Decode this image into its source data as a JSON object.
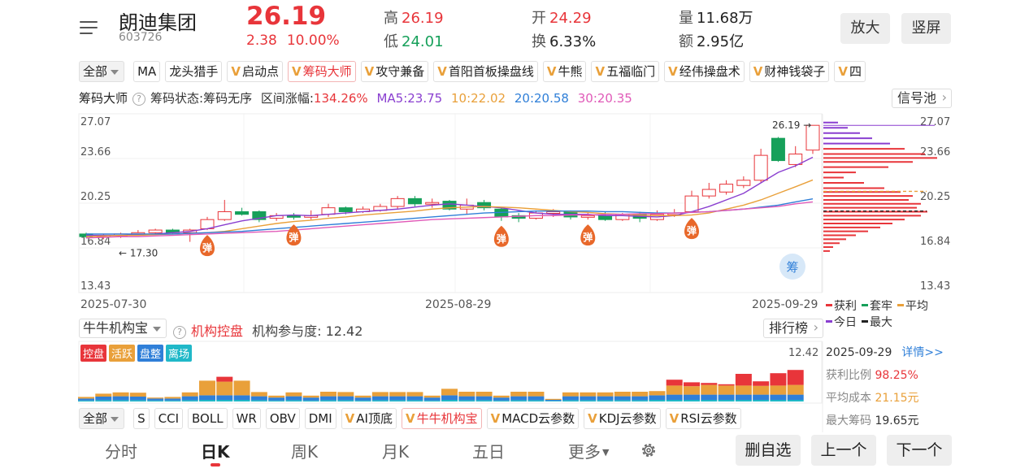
{
  "header": {
    "name": "朗迪集团",
    "code": "603726",
    "price": "26.19",
    "change": "2.38",
    "change_pct": "10.00%",
    "high_label": "高",
    "high": "26.19",
    "low_label": "低",
    "low": "24.01",
    "open_label": "开",
    "open": "24.29",
    "turnover_label": "换",
    "turnover": "6.33%",
    "volume_label": "量",
    "volume": "11.68万",
    "amount_label": "额",
    "amount": "2.95亿",
    "zoom_btn": "放大",
    "portrait_btn": "竖屏"
  },
  "indicator_bar": {
    "selector": "全部",
    "items": [
      "MA",
      "龙头猎手",
      "启动点",
      "筹码大师",
      "攻守兼备",
      "首阳首板操盘线",
      "牛熊",
      "五福临门",
      "经伟操盘术",
      "财神钱袋子",
      "四"
    ],
    "active": "筹码大师"
  },
  "chart_info": {
    "title": "筹码大师",
    "state": "筹码状态:筹码无序",
    "range_label": "区间涨幅:",
    "range_value": "134.26%",
    "ma5": "MA5:23.75",
    "ma10": "10:22.02",
    "ma20": "20:20.58",
    "ma30": "30:20.35",
    "signal_pool": "信号池"
  },
  "colors": {
    "up": "#e8353a",
    "down": "#16a05a",
    "ma5": "#8a3fd0",
    "ma10": "#e9a03a",
    "ma20": "#2f7fd8",
    "ma30": "#e05ab8"
  },
  "chart_data": {
    "type": "candlestick",
    "y_ticks": [
      "27.07",
      "23.66",
      "20.25",
      "16.84",
      "13.43"
    ],
    "ylim": [
      13.43,
      27.07
    ],
    "x_labels": [
      "2025-07-30",
      "2025-08-29",
      "2025-09-29"
    ],
    "max_label": "26.19",
    "min_label": "17.30",
    "signal_label": "弹",
    "chip_label": "筹",
    "candles": [
      {
        "o": 17.9,
        "c": 17.7,
        "h": 18.0,
        "l": 17.6
      },
      {
        "o": 17.7,
        "c": 17.8,
        "h": 17.9,
        "l": 17.5
      },
      {
        "o": 17.8,
        "c": 17.9,
        "h": 18.0,
        "l": 17.6
      },
      {
        "o": 17.9,
        "c": 18.0,
        "h": 18.2,
        "l": 17.8
      },
      {
        "o": 18.0,
        "c": 18.2,
        "h": 18.3,
        "l": 17.9
      },
      {
        "o": 18.2,
        "c": 18.0,
        "h": 18.3,
        "l": 17.9
      },
      {
        "o": 18.0,
        "c": 18.2,
        "h": 18.3,
        "l": 17.3
      },
      {
        "o": 18.3,
        "c": 19.0,
        "h": 19.2,
        "l": 18.2
      },
      {
        "o": 19.0,
        "c": 19.6,
        "h": 20.5,
        "l": 18.9
      },
      {
        "o": 19.6,
        "c": 19.4,
        "h": 19.9,
        "l": 19.3
      },
      {
        "o": 19.6,
        "c": 19.0,
        "h": 19.7,
        "l": 18.8
      },
      {
        "o": 19.1,
        "c": 19.3,
        "h": 19.5,
        "l": 18.9
      },
      {
        "o": 19.3,
        "c": 19.2,
        "h": 19.5,
        "l": 19.0
      },
      {
        "o": 19.2,
        "c": 19.3,
        "h": 19.7,
        "l": 19.0
      },
      {
        "o": 19.4,
        "c": 19.9,
        "h": 20.2,
        "l": 19.2
      },
      {
        "o": 19.9,
        "c": 19.6,
        "h": 20.0,
        "l": 19.4
      },
      {
        "o": 19.6,
        "c": 19.8,
        "h": 20.0,
        "l": 19.5
      },
      {
        "o": 19.7,
        "c": 20.0,
        "h": 20.2,
        "l": 19.6
      },
      {
        "o": 20.0,
        "c": 20.6,
        "h": 20.8,
        "l": 19.8
      },
      {
        "o": 20.6,
        "c": 20.2,
        "h": 20.8,
        "l": 20.0
      },
      {
        "o": 20.2,
        "c": 20.3,
        "h": 20.6,
        "l": 19.9
      },
      {
        "o": 20.4,
        "c": 19.8,
        "h": 20.5,
        "l": 19.7
      },
      {
        "o": 19.8,
        "c": 20.1,
        "h": 20.6,
        "l": 19.4
      },
      {
        "o": 20.3,
        "c": 19.9,
        "h": 20.5,
        "l": 19.7
      },
      {
        "o": 19.8,
        "c": 19.2,
        "h": 19.9,
        "l": 18.9
      },
      {
        "o": 19.3,
        "c": 19.1,
        "h": 19.5,
        "l": 18.8
      },
      {
        "o": 19.1,
        "c": 19.5,
        "h": 19.7,
        "l": 19.0
      },
      {
        "o": 19.5,
        "c": 19.6,
        "h": 19.8,
        "l": 19.2
      },
      {
        "o": 19.6,
        "c": 19.2,
        "h": 19.7,
        "l": 19.0
      },
      {
        "o": 19.2,
        "c": 19.3,
        "h": 19.5,
        "l": 19.0
      },
      {
        "o": 19.3,
        "c": 19.0,
        "h": 19.6,
        "l": 18.9
      },
      {
        "o": 19.0,
        "c": 19.4,
        "h": 19.5,
        "l": 18.9
      },
      {
        "o": 19.4,
        "c": 19.1,
        "h": 19.6,
        "l": 18.8
      },
      {
        "o": 19.0,
        "c": 19.4,
        "h": 19.7,
        "l": 18.9
      },
      {
        "o": 19.4,
        "c": 19.5,
        "h": 19.8,
        "l": 19.2
      },
      {
        "o": 19.6,
        "c": 20.8,
        "h": 21.2,
        "l": 19.5
      },
      {
        "o": 20.8,
        "c": 21.3,
        "h": 21.8,
        "l": 20.6
      },
      {
        "o": 21.1,
        "c": 21.7,
        "h": 22.0,
        "l": 20.9
      },
      {
        "o": 21.6,
        "c": 22.0,
        "h": 22.3,
        "l": 21.4
      },
      {
        "o": 22.0,
        "c": 23.9,
        "h": 24.4,
        "l": 21.8
      },
      {
        "o": 25.2,
        "c": 23.5,
        "h": 25.3,
        "l": 23.4
      },
      {
        "o": 23.2,
        "c": 24.0,
        "h": 24.6,
        "l": 23.0
      },
      {
        "o": 24.3,
        "c": 26.19,
        "h": 26.19,
        "l": 24.01
      }
    ],
    "ma5": [
      17.8,
      17.8,
      17.8,
      17.85,
      17.9,
      18.0,
      18.1,
      18.3,
      18.6,
      18.9,
      19.1,
      19.3,
      19.35,
      19.3,
      19.4,
      19.5,
      19.6,
      19.7,
      19.8,
      19.95,
      20.1,
      20.2,
      20.1,
      20.0,
      19.9,
      19.7,
      19.5,
      19.4,
      19.4,
      19.4,
      19.3,
      19.3,
      19.25,
      19.2,
      19.3,
      19.6,
      20.0,
      20.5,
      21.0,
      21.8,
      22.6,
      23.1,
      23.75
    ],
    "ma10": [
      17.7,
      17.75,
      17.8,
      17.8,
      17.85,
      17.9,
      17.95,
      18.0,
      18.1,
      18.3,
      18.5,
      18.7,
      18.85,
      18.95,
      19.1,
      19.2,
      19.35,
      19.45,
      19.55,
      19.65,
      19.8,
      19.9,
      19.95,
      20.0,
      19.95,
      19.9,
      19.8,
      19.7,
      19.6,
      19.55,
      19.45,
      19.4,
      19.35,
      19.3,
      19.3,
      19.35,
      19.5,
      19.8,
      20.1,
      20.5,
      21.0,
      21.5,
      22.02
    ],
    "ma20": [
      17.9,
      17.9,
      17.9,
      17.9,
      17.9,
      17.9,
      17.95,
      18.0,
      18.05,
      18.1,
      18.2,
      18.3,
      18.4,
      18.5,
      18.6,
      18.7,
      18.8,
      18.9,
      19.0,
      19.1,
      19.2,
      19.3,
      19.4,
      19.5,
      19.55,
      19.6,
      19.65,
      19.65,
      19.65,
      19.65,
      19.6,
      19.6,
      19.55,
      19.5,
      19.5,
      19.55,
      19.6,
      19.7,
      19.8,
      19.95,
      20.1,
      20.35,
      20.58
    ],
    "ma30": [
      17.6,
      17.65,
      17.7,
      17.7,
      17.75,
      17.8,
      17.85,
      17.9,
      17.95,
      18.0,
      18.05,
      18.1,
      18.2,
      18.3,
      18.4,
      18.5,
      18.6,
      18.7,
      18.8,
      18.9,
      19.0,
      19.05,
      19.1,
      19.15,
      19.2,
      19.25,
      19.3,
      19.3,
      19.35,
      19.35,
      19.4,
      19.4,
      19.45,
      19.45,
      19.5,
      19.55,
      19.6,
      19.7,
      19.8,
      19.9,
      20.0,
      20.2,
      20.35
    ],
    "signals_at": [
      7,
      12,
      24,
      29,
      35
    ],
    "chip_profile": [
      {
        "price": 26.4,
        "len": 18,
        "profit": true
      },
      {
        "price": 26.0,
        "len": 30,
        "profit": true
      },
      {
        "price": 25.6,
        "len": 45,
        "profit": true
      },
      {
        "price": 25.2,
        "len": 60,
        "profit": true
      },
      {
        "price": 24.8,
        "len": 82,
        "profit": true
      },
      {
        "price": 24.4,
        "len": 100,
        "profit": true
      },
      {
        "price": 24.0,
        "len": 125,
        "profit": true
      },
      {
        "price": 23.7,
        "len": 140,
        "profit": true
      },
      {
        "price": 23.4,
        "len": 110,
        "profit": true
      },
      {
        "price": 23.0,
        "len": 80,
        "profit": true
      },
      {
        "price": 22.6,
        "len": 40,
        "profit": true
      },
      {
        "price": 22.2,
        "len": 25,
        "profit": true
      },
      {
        "price": 21.8,
        "len": 50,
        "profit": true
      },
      {
        "price": 21.4,
        "len": 75,
        "profit": true
      },
      {
        "price": 21.1,
        "len": 95,
        "profit": true
      },
      {
        "price": 20.8,
        "len": 110,
        "profit": true
      },
      {
        "price": 20.5,
        "len": 105,
        "profit": true
      },
      {
        "price": 20.2,
        "len": 120,
        "profit": true
      },
      {
        "price": 19.9,
        "len": 115,
        "profit": true
      },
      {
        "price": 19.6,
        "len": 128,
        "profit": true
      },
      {
        "price": 19.3,
        "len": 120,
        "profit": true
      },
      {
        "price": 19.0,
        "len": 100,
        "profit": true
      },
      {
        "price": 18.7,
        "len": 85,
        "profit": true
      },
      {
        "price": 18.4,
        "len": 70,
        "profit": true
      },
      {
        "price": 18.1,
        "len": 55,
        "profit": true
      },
      {
        "price": 17.8,
        "len": 40,
        "profit": true
      },
      {
        "price": 17.5,
        "len": 28,
        "profit": true
      },
      {
        "price": 17.2,
        "len": 20,
        "profit": true
      },
      {
        "price": 16.9,
        "len": 12,
        "profit": true
      },
      {
        "price": 16.6,
        "len": 8,
        "profit": true
      }
    ],
    "avg_cost_level": 21.15,
    "max_chip_level": 19.65
  },
  "legend": {
    "profit": "获利",
    "trapped": "套牢",
    "avg": "平均",
    "today": "今日",
    "max": "最大"
  },
  "institution": {
    "selector": "牛牛机构宝",
    "title": "机构控盘",
    "participation": "机构参与度: 12.42",
    "ranking": "排行榜",
    "max_value": "12.42",
    "badges": [
      {
        "label": "控盘",
        "color": "#e8353a"
      },
      {
        "label": "活跃",
        "color": "#e9a03a"
      },
      {
        "label": "盘整",
        "color": "#2f7fd8"
      },
      {
        "label": "离场",
        "color": "#20b8c8"
      }
    ],
    "bars": [
      {
        "k": 0,
        "h": 0.5,
        "b": 0.6,
        "c": 0.3
      },
      {
        "k": 0,
        "h": 0.9,
        "b": 1.1,
        "c": 0.4
      },
      {
        "k": 0,
        "h": 1.2,
        "b": 1.2,
        "c": 0.4
      },
      {
        "k": 0,
        "h": 1.2,
        "b": 1.1,
        "c": 0.4
      },
      {
        "k": 0,
        "h": 0.3,
        "b": 0.6,
        "c": 0.3
      },
      {
        "k": 0,
        "h": 0.5,
        "b": 0.6,
        "c": 0.3
      },
      {
        "k": 0,
        "h": 1.2,
        "b": 1.2,
        "c": 0.4
      },
      {
        "k": 0,
        "h": 4.5,
        "b": 1.4,
        "c": 0.5
      },
      {
        "k": 1.5,
        "h": 4.2,
        "b": 1.4,
        "c": 0.5
      },
      {
        "k": 0,
        "h": 4.5,
        "b": 1.4,
        "c": 0.5
      },
      {
        "k": 0,
        "h": 1.3,
        "b": 1.2,
        "c": 0.4
      },
      {
        "k": 0,
        "h": 0.6,
        "b": 0.9,
        "c": 0.3
      },
      {
        "k": 0,
        "h": 1.2,
        "b": 1.2,
        "c": 0.4
      },
      {
        "k": 0,
        "h": 0.6,
        "b": 0.9,
        "c": 0.3
      },
      {
        "k": 0,
        "h": 1.4,
        "b": 1.2,
        "c": 0.4
      },
      {
        "k": 0,
        "h": 1.3,
        "b": 1.2,
        "c": 0.4
      },
      {
        "k": 0,
        "h": 0.6,
        "b": 0.9,
        "c": 0.3
      },
      {
        "k": 0,
        "h": 1.3,
        "b": 1.2,
        "c": 0.4
      },
      {
        "k": 0,
        "h": 1.3,
        "b": 1.2,
        "c": 0.4
      },
      {
        "k": 0,
        "h": 1.3,
        "b": 1.2,
        "c": 0.4
      },
      {
        "k": 0,
        "h": 0.6,
        "b": 0.9,
        "c": 0.3
      },
      {
        "k": 0,
        "h": 2.0,
        "b": 1.4,
        "c": 0.5
      },
      {
        "k": 0,
        "h": 1.4,
        "b": 1.2,
        "c": 0.4
      },
      {
        "k": 0,
        "h": 1.4,
        "b": 1.2,
        "c": 0.4
      },
      {
        "k": 0,
        "h": 0.6,
        "b": 0.9,
        "c": 0.3
      },
      {
        "k": 0,
        "h": 1.4,
        "b": 1.2,
        "c": 0.4
      },
      {
        "k": 0,
        "h": 1.4,
        "b": 1.2,
        "c": 0.4
      },
      {
        "k": 0,
        "h": 0.3,
        "b": 0.3,
        "c": 0.2
      },
      {
        "k": 0,
        "h": 1.2,
        "b": 1.2,
        "c": 0.4
      },
      {
        "k": 0,
        "h": 1.2,
        "b": 1.2,
        "c": 0.4
      },
      {
        "k": 0,
        "h": 1.2,
        "b": 1.2,
        "c": 0.4
      },
      {
        "k": 0,
        "h": 1.4,
        "b": 1.2,
        "c": 0.4
      },
      {
        "k": 0,
        "h": 1.4,
        "b": 1.2,
        "c": 0.4
      },
      {
        "k": 0,
        "h": 1.3,
        "b": 1.4,
        "c": 0.5
      },
      {
        "k": 1.8,
        "h": 2.8,
        "b": 1.6,
        "c": 0.5
      },
      {
        "k": 1.2,
        "h": 2.6,
        "b": 1.6,
        "c": 0.5
      },
      {
        "k": 0.6,
        "h": 3.0,
        "b": 1.6,
        "c": 0.5
      },
      {
        "k": 0.4,
        "h": 2.8,
        "b": 1.6,
        "c": 0.5
      },
      {
        "k": 3.6,
        "h": 2.8,
        "b": 1.6,
        "c": 0.5
      },
      {
        "k": 1.4,
        "h": 2.7,
        "b": 1.6,
        "c": 0.5
      },
      {
        "k": 3.8,
        "h": 2.8,
        "b": 1.6,
        "c": 0.5
      },
      {
        "k": 4.6,
        "h": 3.0,
        "b": 1.6,
        "c": 0.5
      }
    ]
  },
  "side_panel": {
    "date": "2025-09-29",
    "detail": "详情>>",
    "profit_ratio_label": "获利比例",
    "profit_ratio": "98.25%",
    "avg_cost_label": "平均成本",
    "avg_cost": "21.15元",
    "max_chip_label": "最大筹码",
    "max_chip": "19.65元"
  },
  "tech_bar": {
    "selector": "全部",
    "items": [
      "S",
      "CCI",
      "BOLL",
      "WR",
      "OBV",
      "DMI",
      "AI顶底",
      "牛牛机构宝",
      "MACD云参数",
      "KDJ云参数",
      "RSI云参数"
    ],
    "v_items": [
      "AI顶底",
      "牛牛机构宝",
      "MACD云参数",
      "KDJ云参数",
      "RSI云参数"
    ],
    "active": "牛牛机构宝"
  },
  "bottom_nav": {
    "tabs": [
      "分时",
      "日K",
      "周K",
      "月K",
      "五日",
      "更多"
    ],
    "active": "日K",
    "remove_watch": "删自选",
    "prev": "上一个",
    "next": "下一个"
  }
}
